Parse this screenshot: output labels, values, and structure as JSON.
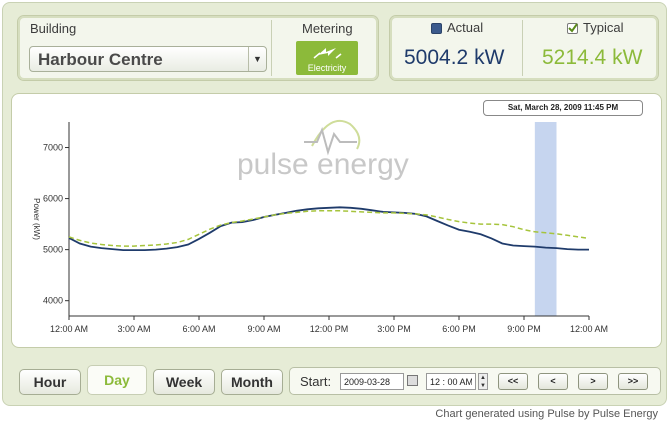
{
  "header": {
    "building_label": "Building",
    "building_value": "Harbour Centre",
    "metering_label": "Metering",
    "metering_badge": "Electricity",
    "actual_label": "Actual",
    "actual_value": "5004.2 kW",
    "typical_label": "Typical",
    "typical_value": "5214.4 kW",
    "actual_color": "#1f3b6b",
    "typical_color": "#8cba3a"
  },
  "chart": {
    "tooltip": "Sat, March 28, 2009 11:45 PM",
    "watermark": "pulse energy",
    "y_label": "Power (kW)"
  },
  "chart_data": {
    "type": "line",
    "ylabel": "Power (kW)",
    "ylim": [
      3700,
      7500
    ],
    "yticks": [
      "4000",
      "5000",
      "6000",
      "7000"
    ],
    "xticks": [
      "12:00 AM",
      "3:00 AM",
      "6:00 AM",
      "9:00 AM",
      "12:00 PM",
      "3:00 PM",
      "6:00 PM",
      "9:00 PM",
      "12:00 AM"
    ],
    "x_hours": [
      0,
      0.5,
      1,
      1.5,
      2,
      2.5,
      3,
      3.5,
      4,
      4.5,
      5,
      5.5,
      6,
      6.5,
      7,
      7.5,
      8,
      8.5,
      9,
      9.5,
      10,
      10.5,
      11,
      11.5,
      12,
      12.5,
      13,
      13.5,
      14,
      14.5,
      15,
      15.5,
      16,
      16.5,
      17,
      17.5,
      18,
      18.5,
      19,
      19.5,
      20,
      20.5,
      21,
      21.5,
      22,
      22.5,
      23,
      23.5,
      24
    ],
    "series": [
      {
        "name": "Actual",
        "color": "#1f3b6b",
        "style": "solid",
        "values": [
          5230,
          5120,
          5060,
          5030,
          5010,
          4990,
          4990,
          4990,
          5000,
          5020,
          5050,
          5100,
          5210,
          5330,
          5460,
          5530,
          5540,
          5580,
          5640,
          5680,
          5720,
          5760,
          5790,
          5810,
          5820,
          5830,
          5820,
          5800,
          5770,
          5740,
          5730,
          5720,
          5700,
          5650,
          5560,
          5470,
          5390,
          5350,
          5300,
          5220,
          5120,
          5080,
          5070,
          5060,
          5040,
          5030,
          5010,
          5000,
          5000
        ]
      },
      {
        "name": "Typical",
        "color": "#a6c43c",
        "style": "dashed",
        "values": [
          5250,
          5180,
          5130,
          5100,
          5080,
          5070,
          5070,
          5080,
          5090,
          5110,
          5140,
          5200,
          5300,
          5400,
          5480,
          5530,
          5560,
          5600,
          5640,
          5680,
          5710,
          5730,
          5750,
          5760,
          5760,
          5760,
          5750,
          5740,
          5730,
          5720,
          5720,
          5710,
          5700,
          5680,
          5640,
          5590,
          5550,
          5520,
          5500,
          5500,
          5490,
          5450,
          5390,
          5350,
          5330,
          5310,
          5280,
          5250,
          5220
        ]
      }
    ],
    "highlight": {
      "from_hour": 21.5,
      "to_hour": 22.5,
      "color": "#c6d5ef"
    }
  },
  "controls": {
    "tabs": [
      "Hour",
      "Day",
      "Week",
      "Month"
    ],
    "active_tab": "Day",
    "start_label": "Start:",
    "date_value": "2009-03-28",
    "time_value": "12 : 00 AM",
    "nav": [
      "<<",
      "<",
      ">",
      ">>"
    ]
  },
  "footer": {
    "credit": "Chart generated using Pulse by Pulse Energy"
  }
}
